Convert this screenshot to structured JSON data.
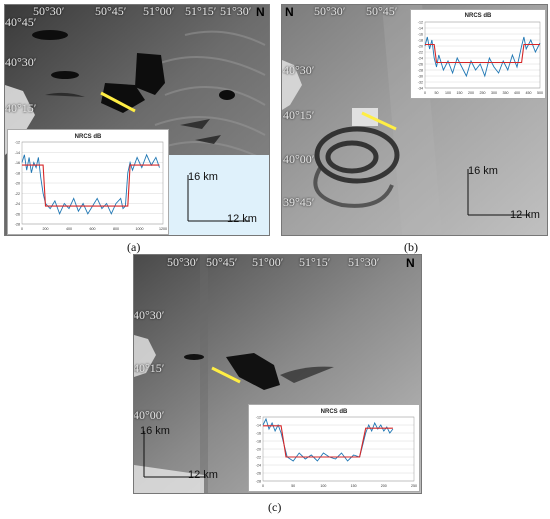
{
  "panels": {
    "a": {
      "caption": "(a)",
      "north": "N",
      "lon_labels": [
        "50°30′",
        "50°45′",
        "51°00′",
        "51°15′",
        "51°30′"
      ],
      "lat_labels": [
        "40°45′",
        "40°30′",
        "40°15′"
      ],
      "scale_v": "16 km",
      "scale_h": "12 km",
      "inset": {
        "title": "NRCS dB"
      }
    },
    "b": {
      "caption": "(b)",
      "north": "N",
      "lon_labels": [
        "50°30′",
        "50°45′"
      ],
      "lat_labels": [
        "40°30′",
        "40°15′",
        "40°00′",
        "39°45′"
      ],
      "scale_v": "16 km",
      "scale_h": "12 km",
      "inset": {
        "title": "NRCS dB"
      }
    },
    "c": {
      "caption": "(c)",
      "north": "N",
      "lon_labels": [
        "50°30′",
        "50°45′",
        "51°00′",
        "51°15′",
        "51°30′"
      ],
      "lat_labels": [
        "40°30′",
        "40°15′",
        "40°00′"
      ],
      "scale_v": "16 km",
      "scale_h": "12 km",
      "inset": {
        "title": "NRCS dB"
      }
    }
  },
  "chart_data": [
    {
      "type": "line",
      "panel": "a",
      "title": "NRCS dB",
      "xlabel": "",
      "ylabel": "",
      "xlim": [
        0,
        1200
      ],
      "ylim": [
        -28,
        -12
      ],
      "x_ticks": [
        0,
        200,
        400,
        600,
        800,
        1000,
        1200
      ],
      "y_ticks": [
        -12,
        -14,
        -16,
        -18,
        -20,
        -22,
        -24,
        -26,
        -28
      ],
      "series": [
        {
          "color": "#1f77b4",
          "x": [
            0,
            20,
            40,
            60,
            80,
            100,
            120,
            140,
            160,
            180,
            200,
            240,
            280,
            320,
            360,
            400,
            440,
            480,
            520,
            560,
            600,
            640,
            680,
            720,
            760,
            800,
            840,
            860,
            880,
            900,
            920,
            940,
            980,
            1020,
            1060,
            1100,
            1140,
            1170
          ],
          "y": [
            -16,
            -14.5,
            -17.5,
            -15,
            -18,
            -16,
            -17,
            -15,
            -19,
            -22,
            -24,
            -25,
            -23.5,
            -26,
            -24,
            -25,
            -23,
            -25.5,
            -24,
            -26,
            -24.5,
            -23,
            -25,
            -24,
            -26,
            -24,
            -23,
            -25,
            -24.5,
            -18,
            -16,
            -17.5,
            -15,
            -17,
            -14.5,
            -16.5,
            -15,
            -17
          ]
        },
        {
          "color": "#d62728",
          "x": [
            0,
            180,
            200,
            900,
            920,
            1170
          ],
          "y": [
            -16.5,
            -16.5,
            -24.5,
            -24.5,
            -16.5,
            -16.5
          ]
        }
      ]
    },
    {
      "type": "line",
      "panel": "b",
      "title": "NRCS dB",
      "xlabel": "",
      "ylabel": "",
      "xlim": [
        0,
        500
      ],
      "ylim": [
        -34,
        -12
      ],
      "x_ticks": [
        0,
        50,
        100,
        150,
        200,
        250,
        300,
        350,
        400,
        450,
        500
      ],
      "y_ticks": [
        -12,
        -14,
        -16,
        -18,
        -20,
        -22,
        -24,
        -26,
        -28,
        -30,
        -32,
        -34
      ],
      "series": [
        {
          "color": "#1f77b4",
          "x": [
            0,
            10,
            20,
            30,
            40,
            50,
            60,
            80,
            100,
            120,
            140,
            160,
            180,
            200,
            220,
            240,
            260,
            280,
            300,
            320,
            340,
            360,
            380,
            400,
            420,
            430,
            440,
            460,
            480,
            500
          ],
          "y": [
            -20,
            -17,
            -21,
            -18,
            -24,
            -27,
            -23,
            -28,
            -25,
            -29,
            -24,
            -27,
            -30,
            -25,
            -28,
            -26,
            -30,
            -24,
            -27,
            -29,
            -25,
            -28,
            -23,
            -27,
            -20,
            -17,
            -21,
            -18,
            -22,
            -19
          ]
        },
        {
          "color": "#d62728",
          "x": [
            0,
            40,
            50,
            420,
            430,
            500
          ],
          "y": [
            -19.5,
            -19.5,
            -25.5,
            -25.5,
            -19.5,
            -19.5
          ]
        }
      ]
    },
    {
      "type": "line",
      "panel": "c",
      "title": "NRCS dB",
      "xlabel": "",
      "ylabel": "",
      "xlim": [
        0,
        250
      ],
      "ylim": [
        -28,
        -12
      ],
      "x_ticks": [
        0,
        50,
        100,
        150,
        200,
        250
      ],
      "y_ticks": [
        -12,
        -14,
        -16,
        -18,
        -20,
        -22,
        -24,
        -26,
        -28
      ],
      "series": [
        {
          "color": "#1f77b4",
          "x": [
            0,
            5,
            10,
            15,
            20,
            25,
            30,
            35,
            40,
            50,
            60,
            70,
            80,
            90,
            100,
            110,
            120,
            130,
            140,
            150,
            160,
            165,
            170,
            175,
            180,
            185,
            190,
            195,
            200,
            205,
            210,
            215
          ],
          "y": [
            -14,
            -12.5,
            -15,
            -13.5,
            -15.5,
            -14,
            -16,
            -19,
            -22,
            -23,
            -21,
            -22.5,
            -21.5,
            -23,
            -21,
            -22,
            -22.5,
            -21,
            -23,
            -21.5,
            -22,
            -19,
            -16,
            -14,
            -15.5,
            -13.5,
            -15,
            -14,
            -15.5,
            -14.5,
            -16,
            -15
          ]
        },
        {
          "color": "#d62728",
          "x": [
            0,
            30,
            38,
            160,
            170,
            215
          ],
          "y": [
            -14.2,
            -14.2,
            -22,
            -22,
            -14.8,
            -14.8
          ]
        }
      ]
    }
  ]
}
